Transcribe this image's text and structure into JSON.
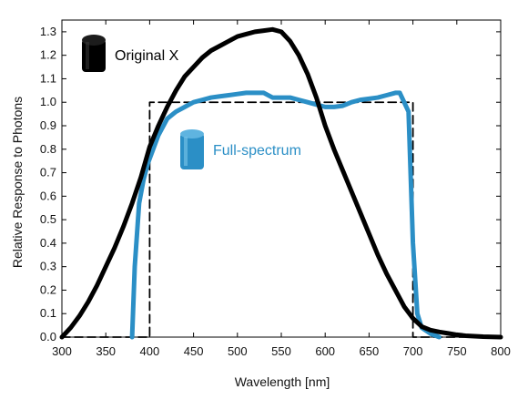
{
  "chart_data": {
    "type": "line",
    "xlabel": "Wavelength [nm]",
    "ylabel": "Relative Response to Photons",
    "xlim": [
      300,
      800
    ],
    "ylim": [
      0,
      1.35
    ],
    "x_ticks": [
      300,
      350,
      400,
      450,
      500,
      550,
      600,
      650,
      700,
      750,
      800
    ],
    "y_ticks": [
      0.0,
      0.1,
      0.2,
      0.3,
      0.4,
      0.5,
      0.6,
      0.7,
      0.8,
      0.9,
      1.0,
      1.1,
      1.2,
      1.3
    ],
    "grid": false,
    "series": [
      {
        "name": "Original X",
        "color": "#000000",
        "icon": "black-sensor-icon",
        "x": [
          300,
          310,
          320,
          330,
          340,
          350,
          360,
          370,
          380,
          390,
          400,
          410,
          420,
          430,
          440,
          450,
          460,
          470,
          480,
          490,
          500,
          510,
          520,
          530,
          540,
          550,
          560,
          570,
          580,
          590,
          600,
          610,
          620,
          630,
          640,
          650,
          660,
          670,
          680,
          690,
          700,
          710,
          720,
          730,
          740,
          750,
          760,
          770,
          780,
          790,
          800
        ],
        "values": [
          0.0,
          0.04,
          0.09,
          0.15,
          0.22,
          0.3,
          0.38,
          0.47,
          0.57,
          0.68,
          0.81,
          0.9,
          0.98,
          1.05,
          1.11,
          1.15,
          1.19,
          1.22,
          1.24,
          1.26,
          1.28,
          1.29,
          1.3,
          1.305,
          1.31,
          1.3,
          1.26,
          1.2,
          1.12,
          1.02,
          0.9,
          0.8,
          0.71,
          0.62,
          0.53,
          0.44,
          0.35,
          0.27,
          0.2,
          0.13,
          0.08,
          0.045,
          0.03,
          0.022,
          0.016,
          0.01,
          0.006,
          0.004,
          0.002,
          0.001,
          0.0
        ]
      },
      {
        "name": "Full-spectrum",
        "color": "#2b8fc6",
        "icon": "blue-sensor-icon",
        "x": [
          380,
          383,
          388,
          393,
          398,
          403,
          410,
          420,
          430,
          440,
          450,
          460,
          470,
          480,
          490,
          500,
          510,
          520,
          530,
          540,
          550,
          560,
          570,
          580,
          590,
          600,
          610,
          620,
          630,
          640,
          650,
          660,
          670,
          680,
          685,
          690,
          695,
          700,
          705,
          710,
          720,
          730
        ],
        "values": [
          0.0,
          0.3,
          0.57,
          0.67,
          0.74,
          0.79,
          0.86,
          0.93,
          0.96,
          0.98,
          1.0,
          1.01,
          1.02,
          1.025,
          1.03,
          1.035,
          1.04,
          1.04,
          1.04,
          1.02,
          1.02,
          1.02,
          1.01,
          1.0,
          0.99,
          0.98,
          0.98,
          0.985,
          1.0,
          1.01,
          1.015,
          1.02,
          1.03,
          1.04,
          1.04,
          1.0,
          0.96,
          0.4,
          0.1,
          0.04,
          0.015,
          0.0
        ]
      },
      {
        "name": "",
        "color": "#000000",
        "dashed": true,
        "x": [
          300,
          400,
          400,
          700,
          700,
          800
        ],
        "values": [
          0.0,
          0.0,
          1.0,
          1.0,
          0.0,
          0.0
        ]
      }
    ]
  }
}
